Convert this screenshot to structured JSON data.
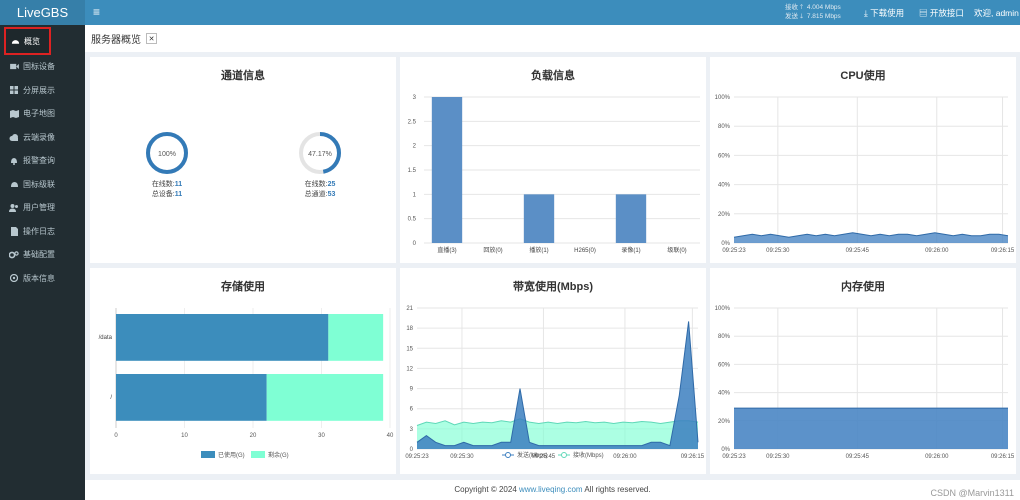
{
  "brand": "LiveGBS",
  "sidebar": {
    "items": [
      {
        "label": "概览",
        "icon": "dashboard-icon"
      },
      {
        "label": "国标设备",
        "icon": "camera-icon"
      },
      {
        "label": "分屏展示",
        "icon": "grid-icon"
      },
      {
        "label": "电子地图",
        "icon": "map-icon"
      },
      {
        "label": "云端录像",
        "icon": "cloud-icon"
      },
      {
        "label": "报警查询",
        "icon": "bell-icon"
      },
      {
        "label": "国标级联",
        "icon": "cascade-icon"
      },
      {
        "label": "用户管理",
        "icon": "users-icon"
      },
      {
        "label": "操作日志",
        "icon": "file-icon"
      },
      {
        "label": "基础配置",
        "icon": "gears-icon"
      },
      {
        "label": "版本信息",
        "icon": "info-icon"
      }
    ]
  },
  "topbar": {
    "recv_label": "接收",
    "recv_value": "4.004 Mbps",
    "send_label": "发送",
    "send_value": "7.815 Mbps",
    "download": "下载使用",
    "api": "开放接口",
    "welcome": "欢迎, admin"
  },
  "page_title": "服务器概览",
  "panels": {
    "channel": {
      "title": "通道信息",
      "left": {
        "percent": "100%",
        "online_label": "在线数:",
        "online": "11",
        "total_label": "总设备:",
        "total": "11",
        "fraction": 1.0
      },
      "right": {
        "percent": "47.17%",
        "online_label": "在线数:",
        "online": "25",
        "total_label": "总通道:",
        "total": "53",
        "fraction": 0.4717
      }
    },
    "load": {
      "title": "负载信息"
    },
    "cpu": {
      "title": "CPU使用"
    },
    "storage": {
      "title": "存储使用"
    },
    "bandwidth": {
      "title": "带宽使用(Mbps)"
    },
    "memory": {
      "title": "内存使用"
    }
  },
  "footer": {
    "prefix": "Copyright © 2024 ",
    "link": "www.liveqing.com",
    "suffix": " All rights reserved."
  },
  "watermark": "CSDN @Marvin1311",
  "colors": {
    "primary": "#3c8dbc",
    "bar": "#5b8fc6",
    "free": "#7fffd4",
    "sidebar": "#222d32"
  },
  "chart_data": [
    {
      "type": "bar",
      "title": "负载信息",
      "categories": [
        "直播(3)",
        "回放(0)",
        "播放(1)",
        "H265(0)",
        "录像(1)",
        "级联(0)"
      ],
      "values": [
        3,
        0,
        1,
        0,
        1,
        0
      ],
      "ylim": [
        0,
        3
      ],
      "yticks": [
        "0",
        "0.5",
        "1",
        "1.5",
        "2",
        "2.5",
        "3"
      ]
    },
    {
      "type": "area",
      "title": "CPU使用",
      "x_ticks": [
        "09:25:23",
        "09:25:30",
        "09:25:45",
        "09:26:00",
        "09:26:15",
        "09:26:2"
      ],
      "y_ticks": [
        "0%",
        "20%",
        "40%",
        "60%",
        "80%",
        "100%"
      ],
      "ylim": [
        0,
        100
      ],
      "values": [
        4,
        5,
        6,
        5,
        6,
        5,
        4,
        5,
        6,
        5,
        6,
        5,
        6,
        7,
        6,
        5,
        6,
        5,
        6,
        6,
        5,
        6,
        7,
        6,
        5,
        6,
        5,
        5,
        6,
        6,
        5
      ]
    },
    {
      "type": "bar",
      "title": "存储使用",
      "orientation": "horizontal",
      "categories": [
        "/data",
        "/"
      ],
      "series": [
        {
          "name": "已使用(G)",
          "values": [
            31,
            22
          ]
        },
        {
          "name": "剩余(G)",
          "values": [
            8,
            17
          ]
        }
      ],
      "xlim": [
        0,
        40
      ],
      "xticks": [
        "0",
        "10",
        "20",
        "30",
        "40"
      ]
    },
    {
      "type": "area",
      "title": "带宽使用(Mbps)",
      "x_ticks": [
        "09:25:23",
        "09:25:30",
        "09:25:45",
        "09:26:00",
        "09:26:15",
        "09:26:2"
      ],
      "y_ticks": [
        "0",
        "3",
        "6",
        "9",
        "12",
        "15",
        "18",
        "21"
      ],
      "ylim": [
        0,
        21
      ],
      "series": [
        {
          "name": "发送(Mbps)",
          "values": [
            1,
            2,
            1,
            0.5,
            0.5,
            1,
            0.5,
            0.5,
            0.5,
            1,
            1,
            9,
            1,
            0.5,
            0.5,
            0.5,
            0.5,
            0.5,
            0.5,
            0.5,
            0.5,
            0.5,
            0.5,
            0.5,
            0.5,
            1,
            1,
            0.5,
            8,
            19,
            1
          ]
        },
        {
          "name": "接收(Mbps)",
          "values": [
            3.5,
            4,
            3.8,
            4.2,
            3.6,
            4,
            3.8,
            4,
            3.9,
            4.2,
            4,
            4.5,
            4,
            3.8,
            4,
            3.8,
            4,
            3.9,
            4.1,
            3.9,
            4,
            3.8,
            4,
            3.9,
            4.1,
            4,
            3.8,
            4,
            4.2,
            4.2,
            4
          ]
        }
      ]
    },
    {
      "type": "area",
      "title": "内存使用",
      "x_ticks": [
        "09:25:23",
        "09:25:30",
        "09:25:45",
        "09:26:00",
        "09:26:15",
        "09:26:2"
      ],
      "y_ticks": [
        "0%",
        "20%",
        "40%",
        "60%",
        "80%",
        "100%"
      ],
      "ylim": [
        0,
        100
      ],
      "values": [
        29,
        29,
        29,
        29,
        29,
        29,
        29,
        29,
        29,
        29,
        29,
        29,
        29,
        29,
        29,
        29,
        29,
        29,
        29,
        29,
        29,
        29,
        29,
        29,
        29,
        29,
        29,
        29,
        29,
        29,
        29
      ]
    }
  ]
}
